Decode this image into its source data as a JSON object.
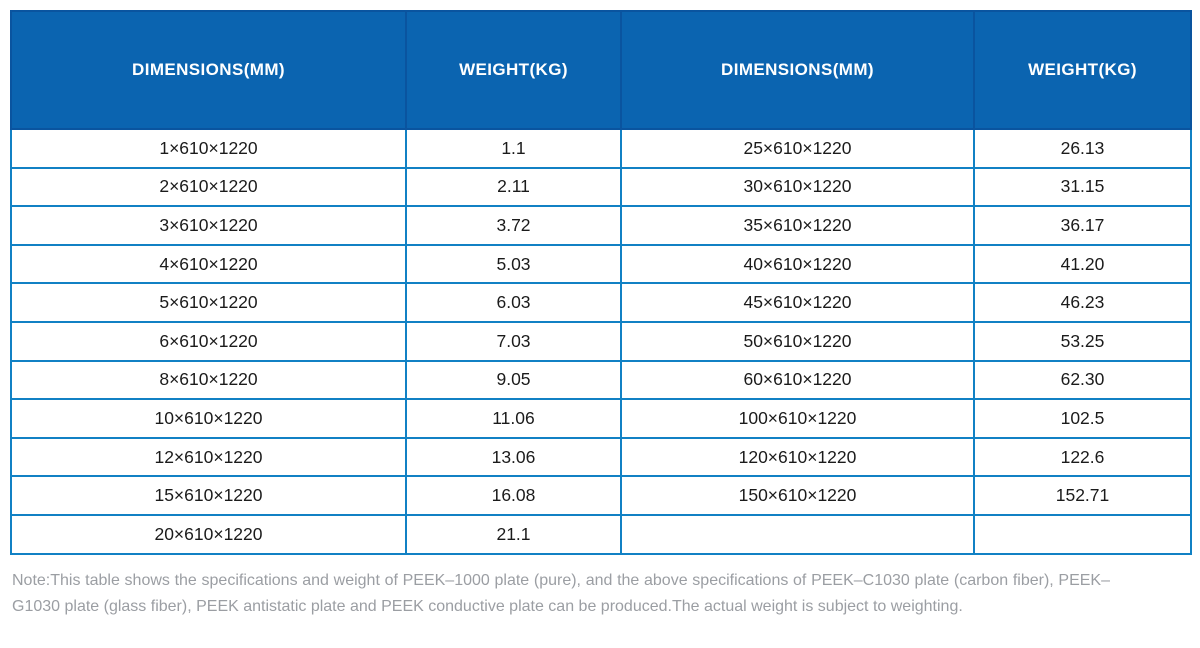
{
  "colors": {
    "header_bg": "#0b64b0",
    "header_divider": "#0a549f",
    "grid": "#1181c4",
    "body_text": "#1b1b1b",
    "note_text": "#9b9ea3"
  },
  "table": {
    "columns": [
      "DIMENSIONS(MM)",
      "WEIGHT(KG)",
      "DIMENSIONS(MM)",
      "WEIGHT(KG)"
    ],
    "rows": [
      [
        "1×610×1220",
        "1.1",
        "25×610×1220",
        "26.13"
      ],
      [
        "2×610×1220",
        "2.11",
        "30×610×1220",
        "31.15"
      ],
      [
        "3×610×1220",
        "3.72",
        "35×610×1220",
        "36.17"
      ],
      [
        "4×610×1220",
        "5.03",
        "40×610×1220",
        "41.20"
      ],
      [
        "5×610×1220",
        "6.03",
        "45×610×1220",
        "46.23"
      ],
      [
        "6×610×1220",
        "7.03",
        "50×610×1220",
        "53.25"
      ],
      [
        "8×610×1220",
        "9.05",
        "60×610×1220",
        "62.30"
      ],
      [
        "10×610×1220",
        "11.06",
        "100×610×1220",
        "102.5"
      ],
      [
        "12×610×1220",
        "13.06",
        "120×610×1220",
        "122.6"
      ],
      [
        "15×610×1220",
        "16.08",
        "150×610×1220",
        "152.71"
      ],
      [
        "20×610×1220",
        "21.1",
        "",
        ""
      ]
    ]
  },
  "note": "Note:This table shows the specifications and weight of PEEK–1000 plate (pure), and the above specifications of PEEK–C1030 plate (carbon fiber), PEEK–G1030 plate (glass fiber), PEEK antistatic plate and PEEK conductive plate can be produced.The actual weight is subject to weighting.",
  "chart_data": {
    "type": "table",
    "title": "",
    "columns": [
      "DIMENSIONS(MM)",
      "WEIGHT(KG)",
      "DIMENSIONS(MM)",
      "WEIGHT(KG)"
    ],
    "rows": [
      [
        "1×610×1220",
        "1.1",
        "25×610×1220",
        "26.13"
      ],
      [
        "2×610×1220",
        "2.11",
        "30×610×1220",
        "31.15"
      ],
      [
        "3×610×1220",
        "3.72",
        "35×610×1220",
        "36.17"
      ],
      [
        "4×610×1220",
        "5.03",
        "40×610×1220",
        "41.20"
      ],
      [
        "5×610×1220",
        "6.03",
        "45×610×1220",
        "46.23"
      ],
      [
        "6×610×1220",
        "7.03",
        "50×610×1220",
        "53.25"
      ],
      [
        "8×610×1220",
        "9.05",
        "60×610×1220",
        "62.30"
      ],
      [
        "10×610×1220",
        "11.06",
        "100×610×1220",
        "102.5"
      ],
      [
        "12×610×1220",
        "13.06",
        "120×610×1220",
        "122.6"
      ],
      [
        "15×610×1220",
        "16.08",
        "150×610×1220",
        "152.71"
      ],
      [
        "20×610×1220",
        "21.1",
        "",
        ""
      ]
    ]
  }
}
